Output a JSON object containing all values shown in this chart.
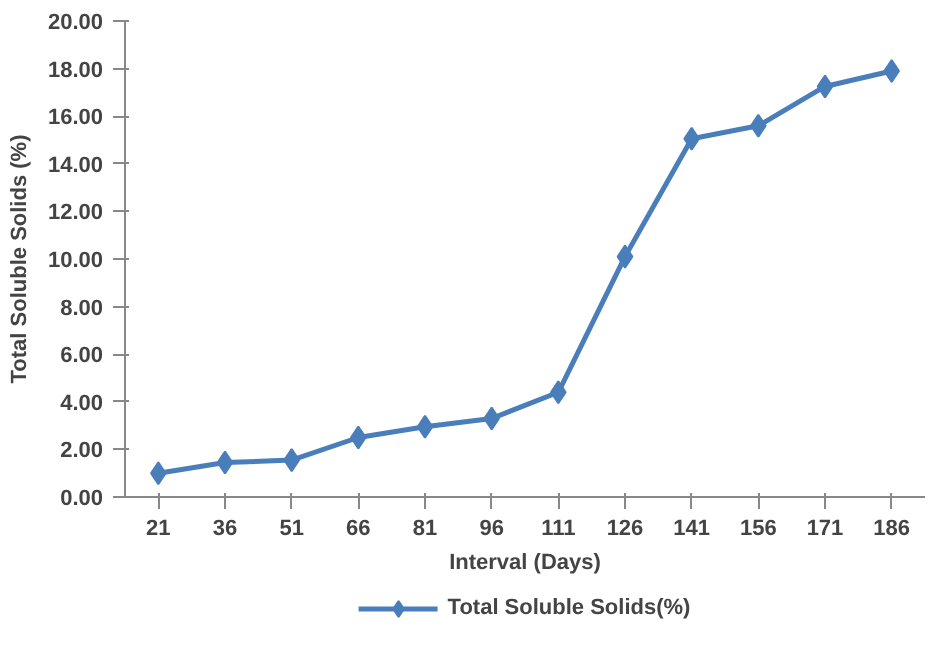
{
  "chart_data": {
    "type": "line",
    "xlabel": "Interval (Days)",
    "ylabel": "Total Soluble Solids (%)",
    "categories": [
      "21",
      "36",
      "51",
      "66",
      "81",
      "96",
      "111",
      "126",
      "141",
      "156",
      "171",
      "186"
    ],
    "series": [
      {
        "name": "Total Soluble Solids(%)",
        "color": "#4a7ebb",
        "values": [
          1.0,
          1.45,
          1.55,
          2.5,
          2.95,
          3.3,
          4.4,
          10.1,
          15.05,
          15.6,
          17.25,
          17.9
        ]
      }
    ],
    "ylim": [
      0,
      20
    ],
    "yticks": [
      {
        "value": 0,
        "label": "0.00"
      },
      {
        "value": 2,
        "label": "2.00"
      },
      {
        "value": 4,
        "label": "4.00"
      },
      {
        "value": 6,
        "label": "6.00"
      },
      {
        "value": 8,
        "label": "8.00"
      },
      {
        "value": 10,
        "label": "10.00"
      },
      {
        "value": 12,
        "label": "12.00"
      },
      {
        "value": 14,
        "label": "14.00"
      },
      {
        "value": 16,
        "label": "16.00"
      },
      {
        "value": 18,
        "label": "18.00"
      },
      {
        "value": 20,
        "label": "20.00"
      }
    ],
    "grid": false,
    "legend": "bottom",
    "marker": "diamond",
    "line_style": "solid"
  }
}
